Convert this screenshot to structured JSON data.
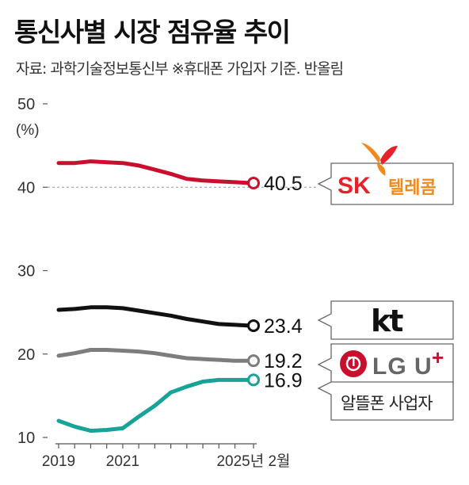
{
  "title": "통신사별 시장 점유율 추이",
  "source": "자료: 과학기술정보통신부 ※휴대폰 가입자 기준. 반올림",
  "chart_data": {
    "type": "line",
    "title": "통신사별 시장 점유율 추이",
    "ylabel": "(%)",
    "ylim": [
      10,
      50
    ],
    "yticks": [
      "50",
      "40",
      "30",
      "20",
      "10"
    ],
    "x": [
      2019,
      2019.5,
      2020,
      2020.5,
      2021,
      2021.5,
      2022,
      2022.5,
      2023,
      2023.5,
      2024,
      2024.5,
      2025,
      2025.08
    ],
    "xtick_labels": [
      {
        "x": 2019,
        "label": "2019"
      },
      {
        "x": 2021,
        "label": "2021"
      },
      {
        "x": 2025.08,
        "label": "2025년 2월"
      }
    ],
    "reference_line": 40,
    "series": [
      {
        "name": "SK텔레콤",
        "color": "#c8102e",
        "values": [
          42.9,
          42.9,
          43.1,
          43.0,
          42.9,
          42.6,
          42.1,
          41.6,
          41.0,
          40.8,
          40.7,
          40.6,
          40.5,
          40.5
        ],
        "end_label": "40.5"
      },
      {
        "name": "kt",
        "color": "#111111",
        "values": [
          25.3,
          25.4,
          25.6,
          25.6,
          25.5,
          25.2,
          24.9,
          24.6,
          24.2,
          23.9,
          23.6,
          23.5,
          23.4,
          23.4
        ],
        "end_label": "23.4"
      },
      {
        "name": "LG U+",
        "color": "#7d7d7d",
        "values": [
          19.8,
          20.1,
          20.5,
          20.5,
          20.4,
          20.3,
          20.1,
          19.8,
          19.5,
          19.4,
          19.3,
          19.2,
          19.2,
          19.2
        ],
        "end_label": "19.2"
      },
      {
        "name": "알뜰폰 사업자",
        "color": "#17a398",
        "values": [
          12.0,
          11.3,
          10.8,
          10.9,
          11.1,
          12.5,
          13.8,
          15.4,
          16.1,
          16.7,
          16.9,
          16.9,
          16.9,
          16.9
        ],
        "end_label": "16.9"
      }
    ]
  },
  "legend_badges": {
    "skt": {
      "sk": "SK",
      "name": "텔레콤"
    },
    "kt": {
      "text": "kt"
    },
    "lgu": {
      "text": "LG U",
      "plus": "+"
    },
    "mvno": {
      "text": "알뜰폰 사업자"
    }
  },
  "colors": {
    "skt_red": "#e8202a",
    "skt_orange": "#f08a1c",
    "lgu_red": "#c8102e",
    "mvno_teal": "#17a398"
  }
}
